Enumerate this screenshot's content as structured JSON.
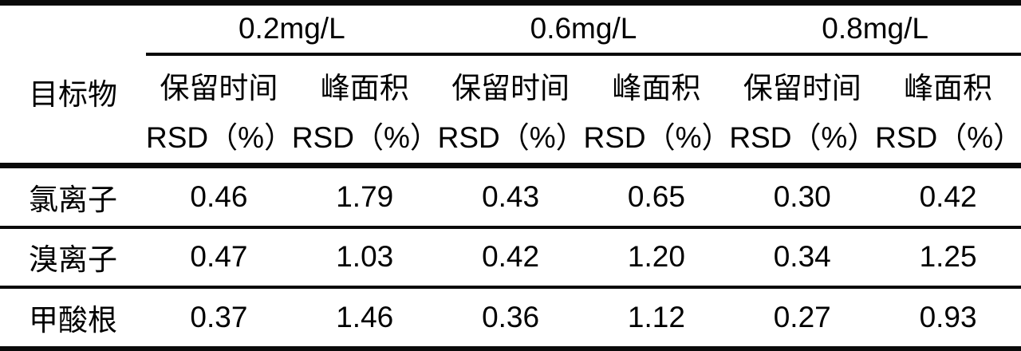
{
  "table": {
    "row_header_label": "目标物",
    "group_headers": [
      {
        "label": "0.2mg/L"
      },
      {
        "label": "0.6mg/L"
      },
      {
        "label": "0.8mg/L"
      }
    ],
    "sub_headers": [
      {
        "line1": "保留时间",
        "line2": "RSD（%）"
      },
      {
        "line1": "峰面积",
        "line2": "RSD（%）"
      },
      {
        "line1": "保留时间",
        "line2": "RSD（%）"
      },
      {
        "line1": "峰面积",
        "line2": "RSD（%）"
      },
      {
        "line1": "保留时间",
        "line2": "RSD（%）"
      },
      {
        "line1": "峰面积",
        "line2": "RSD（%）"
      }
    ],
    "rows": [
      {
        "label": "氯离子",
        "values": [
          "0.46",
          "1.79",
          "0.43",
          "0.65",
          "0.30",
          "0.42"
        ]
      },
      {
        "label": "溴离子",
        "values": [
          "0.47",
          "1.03",
          "0.42",
          "1.20",
          "0.34",
          "1.25"
        ]
      },
      {
        "label": "甲酸根",
        "values": [
          "0.37",
          "1.46",
          "0.36",
          "1.12",
          "0.27",
          "0.93"
        ]
      }
    ],
    "colors": {
      "rule_line": "#0a0a0a",
      "text": "#000000",
      "background": "#ffffff"
    }
  }
}
